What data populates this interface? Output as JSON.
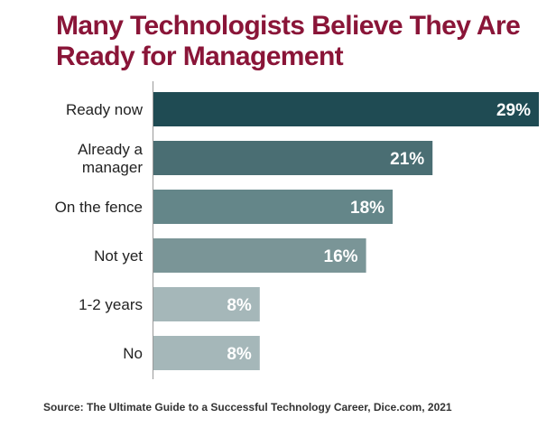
{
  "chart_data": {
    "type": "bar",
    "orientation": "horizontal",
    "title": "Many Technologists Believe They Are Ready for Management",
    "categories": [
      "Ready now",
      "Already a manager",
      "On the fence",
      "Not yet",
      "1-2 years",
      "No"
    ],
    "category_lines": [
      [
        "Ready now"
      ],
      [
        "Already a",
        "manager"
      ],
      [
        "On the fence"
      ],
      [
        "Not yet"
      ],
      [
        "1-2 years"
      ],
      [
        "No"
      ]
    ],
    "values": [
      29,
      21,
      18,
      16,
      8,
      8
    ],
    "value_labels": [
      "29%",
      "21%",
      "18%",
      "16%",
      "8%",
      "8%"
    ],
    "xlim": [
      0,
      29
    ],
    "grid": false,
    "legend": "none",
    "colors": [
      "#1f4b53",
      "#4a6e73",
      "#648689",
      "#7a9597",
      "#a5b7b9",
      "#a5b7b9"
    ],
    "label_color": "#ffffff"
  },
  "source": "Source: The Ultimate Guide to a Successful Technology Career, Dice.com, 2021",
  "colors": {
    "title": "#8a1538",
    "axis": "#999999",
    "category_text": "#222222",
    "source_text": "#333333"
  }
}
